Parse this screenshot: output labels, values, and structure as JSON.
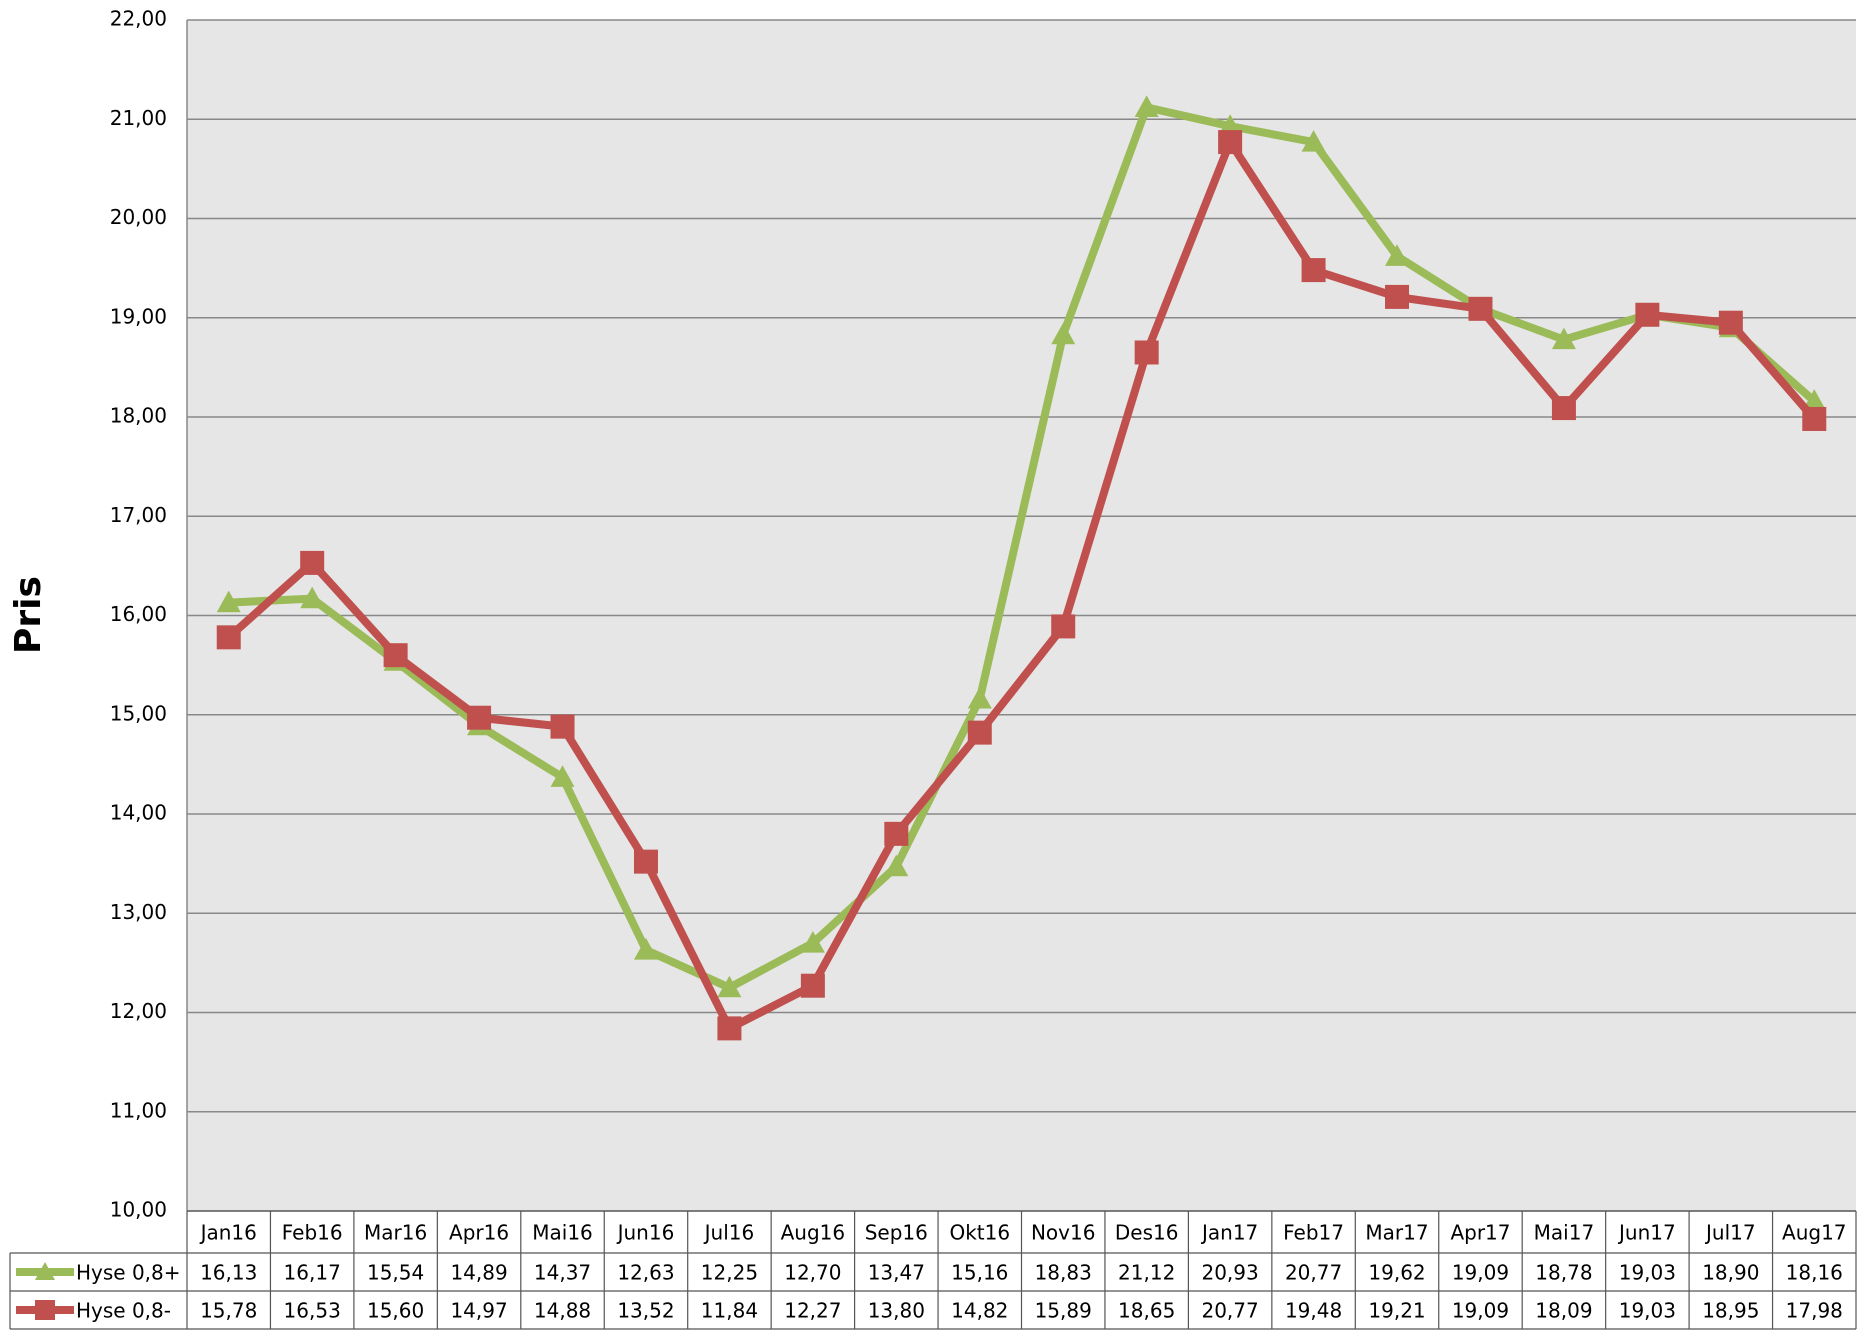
{
  "chart_data": {
    "type": "line",
    "y_label": "Pris",
    "categories": [
      "Jan16",
      "Feb16",
      "Mar16",
      "Apr16",
      "Mai16",
      "Jun16",
      "Jul16",
      "Aug16",
      "Sep16",
      "Okt16",
      "Nov16",
      "Des16",
      "Jan17",
      "Feb17",
      "Mar17",
      "Apr17",
      "Mai17",
      "Jun17",
      "Jul17",
      "Aug17"
    ],
    "series": [
      {
        "name": "Hyse 0,8+",
        "color": "#9bbb59",
        "marker": "triangle",
        "values": [
          16.13,
          16.17,
          15.54,
          14.89,
          14.37,
          12.63,
          12.25,
          12.7,
          13.47,
          15.16,
          18.83,
          21.12,
          20.93,
          20.77,
          19.62,
          19.09,
          18.78,
          19.03,
          18.9,
          18.16
        ],
        "value_labels": [
          "16,13",
          "16,17",
          "15,54",
          "14,89",
          "14,37",
          "12,63",
          "12,25",
          "12,70",
          "13,47",
          "15,16",
          "18,83",
          "21,12",
          "20,93",
          "20,77",
          "19,62",
          "19,09",
          "18,78",
          "19,03",
          "18,90",
          "18,16"
        ]
      },
      {
        "name": "Hyse 0,8-",
        "color": "#c0504d",
        "marker": "square",
        "values": [
          15.78,
          16.53,
          15.6,
          14.97,
          14.88,
          13.52,
          11.84,
          12.27,
          13.8,
          14.82,
          15.89,
          18.65,
          20.77,
          19.48,
          19.21,
          19.09,
          18.09,
          19.03,
          18.95,
          17.98
        ],
        "value_labels": [
          "15,78",
          "16,53",
          "15,60",
          "14,97",
          "14,88",
          "13,52",
          "11,84",
          "12,27",
          "13,80",
          "14,82",
          "15,89",
          "18,65",
          "20,77",
          "19,48",
          "19,21",
          "19,09",
          "18,09",
          "19,03",
          "18,95",
          "17,98"
        ]
      }
    ],
    "ylim": [
      10,
      22
    ],
    "yticks": [
      {
        "value": 10,
        "label": "10,00"
      },
      {
        "value": 11,
        "label": "11,00"
      },
      {
        "value": 12,
        "label": "12,00"
      },
      {
        "value": 13,
        "label": "13,00"
      },
      {
        "value": 14,
        "label": "14,00"
      },
      {
        "value": 15,
        "label": "15,00"
      },
      {
        "value": 16,
        "label": "16,00"
      },
      {
        "value": 17,
        "label": "17,00"
      },
      {
        "value": 18,
        "label": "18,00"
      },
      {
        "value": 19,
        "label": "19,00"
      },
      {
        "value": 20,
        "label": "20,00"
      },
      {
        "value": 21,
        "label": "21,00"
      },
      {
        "value": 22,
        "label": "22,00"
      }
    ],
    "grid": true,
    "data_table": true
  }
}
